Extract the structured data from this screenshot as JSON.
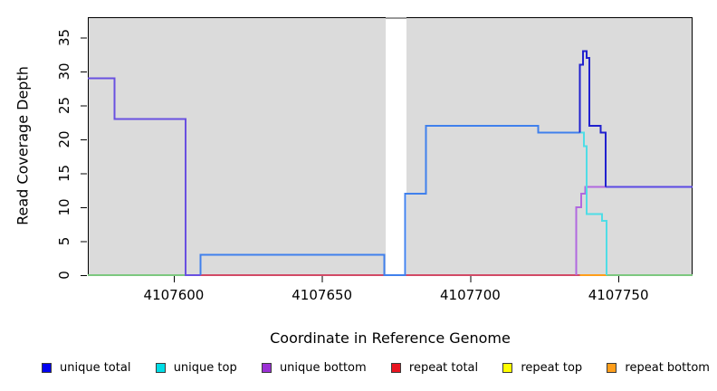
{
  "figure": {
    "ylabel": "Read Coverage Depth",
    "xlabel": "Coordinate in Reference Genome"
  },
  "chart_data": {
    "type": "line",
    "subtype": "step-coverage-plot",
    "title": "",
    "xlabel": "Coordinate in Reference Genome",
    "ylabel": "Read Coverage Depth",
    "xlim": [
      4107571,
      4107775
    ],
    "ylim": [
      0,
      38
    ],
    "x_ticks": [
      4107600,
      4107650,
      4107700,
      4107750
    ],
    "y_ticks": [
      0,
      5,
      10,
      15,
      20,
      25,
      30,
      35
    ],
    "grid": false,
    "panel_bg": "#DBDBDB",
    "gap_region": {
      "x0": 4107671.5,
      "x1": 4107678.5,
      "color": "#FFFFFF",
      "cap_color": "#999999"
    },
    "series": [
      {
        "name": "zero-line-left",
        "color": "#7CC87F",
        "points": [
          [
            4107571,
            0
          ],
          [
            4107604,
            0
          ]
        ]
      },
      {
        "name": "zero-line-right",
        "color": "#7CC87F",
        "points": [
          [
            4107746,
            0
          ],
          [
            4107775,
            0
          ]
        ]
      },
      {
        "name": "repeat-total",
        "color": "#D24A66",
        "points": [
          [
            4107609,
            0
          ],
          [
            4107737,
            0
          ]
        ]
      },
      {
        "name": "repeat-bottom",
        "color": "#FF9E1B",
        "points": [
          [
            4107737,
            0
          ],
          [
            4107746,
            0
          ]
        ]
      },
      {
        "name": "unique-bottom",
        "color": "#B168DF",
        "points": [
          [
            4107735.8,
            0
          ],
          [
            4107735.8,
            10
          ],
          [
            4107737.5,
            10
          ],
          [
            4107737.5,
            12
          ],
          [
            4107738.8,
            12
          ],
          [
            4107738.8,
            13
          ],
          [
            4107746,
            13
          ]
        ]
      },
      {
        "name": "unique-top",
        "color": "#4FDDE6",
        "points": [
          [
            4107737,
            21
          ],
          [
            4107738.3,
            21
          ],
          [
            4107738.3,
            19
          ],
          [
            4107739.3,
            19
          ],
          [
            4107739.3,
            9
          ],
          [
            4107744.5,
            9
          ],
          [
            4107744.5,
            8
          ],
          [
            4107746,
            8
          ],
          [
            4107746,
            0
          ]
        ]
      },
      {
        "name": "unique-total-top-strand-segment",
        "color": "#4080EC",
        "points": [
          [
            4107609,
            0
          ],
          [
            4107609,
            3
          ],
          [
            4107671,
            3
          ],
          [
            4107671,
            0
          ],
          [
            4107678,
            0
          ],
          [
            4107678,
            12
          ],
          [
            4107685,
            12
          ],
          [
            4107685,
            22
          ],
          [
            4107723,
            22
          ],
          [
            4107723,
            21
          ],
          [
            4107737,
            21
          ]
        ]
      },
      {
        "name": "unique-total-bottom-strand-left-segment",
        "color": "#6950E0",
        "points": [
          [
            4107571,
            29
          ],
          [
            4107580,
            29
          ],
          [
            4107580,
            23
          ],
          [
            4107604,
            23
          ],
          [
            4107604,
            0
          ],
          [
            4107609,
            0
          ]
        ]
      },
      {
        "name": "unique-total-right-plateau",
        "color": "#5B49E3",
        "points": [
          [
            4107745.7,
            13
          ],
          [
            4107775,
            13
          ]
        ]
      },
      {
        "name": "unique-total-spike",
        "color": "#2121CE",
        "points": [
          [
            4107737,
            21
          ],
          [
            4107737,
            31
          ],
          [
            4107738,
            31
          ],
          [
            4107738,
            33
          ],
          [
            4107739.2,
            33
          ],
          [
            4107739.2,
            32
          ],
          [
            4107740.2,
            32
          ],
          [
            4107740.2,
            22
          ],
          [
            4107744,
            22
          ],
          [
            4107744,
            21
          ],
          [
            4107745.7,
            21
          ],
          [
            4107745.7,
            13
          ]
        ]
      }
    ]
  },
  "legend": {
    "items": [
      {
        "label": "unique total",
        "color": "#0202F0"
      },
      {
        "label": "unique top",
        "color": "#00DDE6"
      },
      {
        "label": "unique bottom",
        "color": "#9B30D5"
      },
      {
        "label": "repeat total",
        "color": "#E91420"
      },
      {
        "label": "repeat top",
        "color": "#FFFF00"
      },
      {
        "label": "repeat bottom",
        "color": "#FF9E1B"
      }
    ]
  }
}
